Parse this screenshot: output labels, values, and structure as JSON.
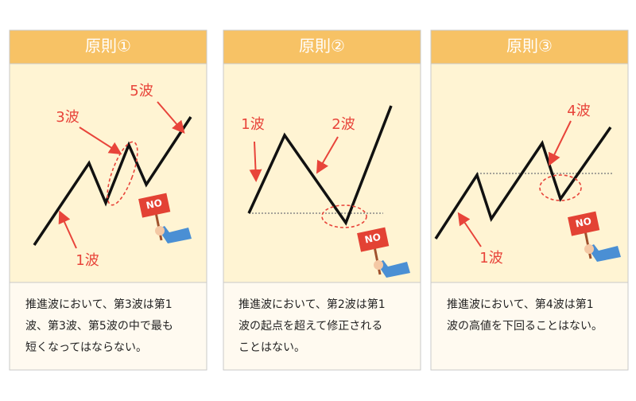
{
  "panels": [
    {
      "title": "原則①",
      "wave_labels": [
        "3波",
        "5波",
        "1波"
      ],
      "sign": "NO",
      "description": [
        "推進波において、第3波は第1",
        "波、第3波、第5波の中で最も",
        "短くなってはならない。"
      ]
    },
    {
      "title": "原則②",
      "wave_labels": [
        "1波",
        "2波"
      ],
      "sign": "NO",
      "description": [
        "推進波において、第2波は第1",
        "波の起点を超えて修正される",
        "ことはない。"
      ]
    },
    {
      "title": "原則③",
      "wave_labels": [
        "4波",
        "1波"
      ],
      "sign": "NO",
      "description": [
        "推進波において、第4波は第1",
        "波の高値を下回ることはない。"
      ]
    }
  ]
}
